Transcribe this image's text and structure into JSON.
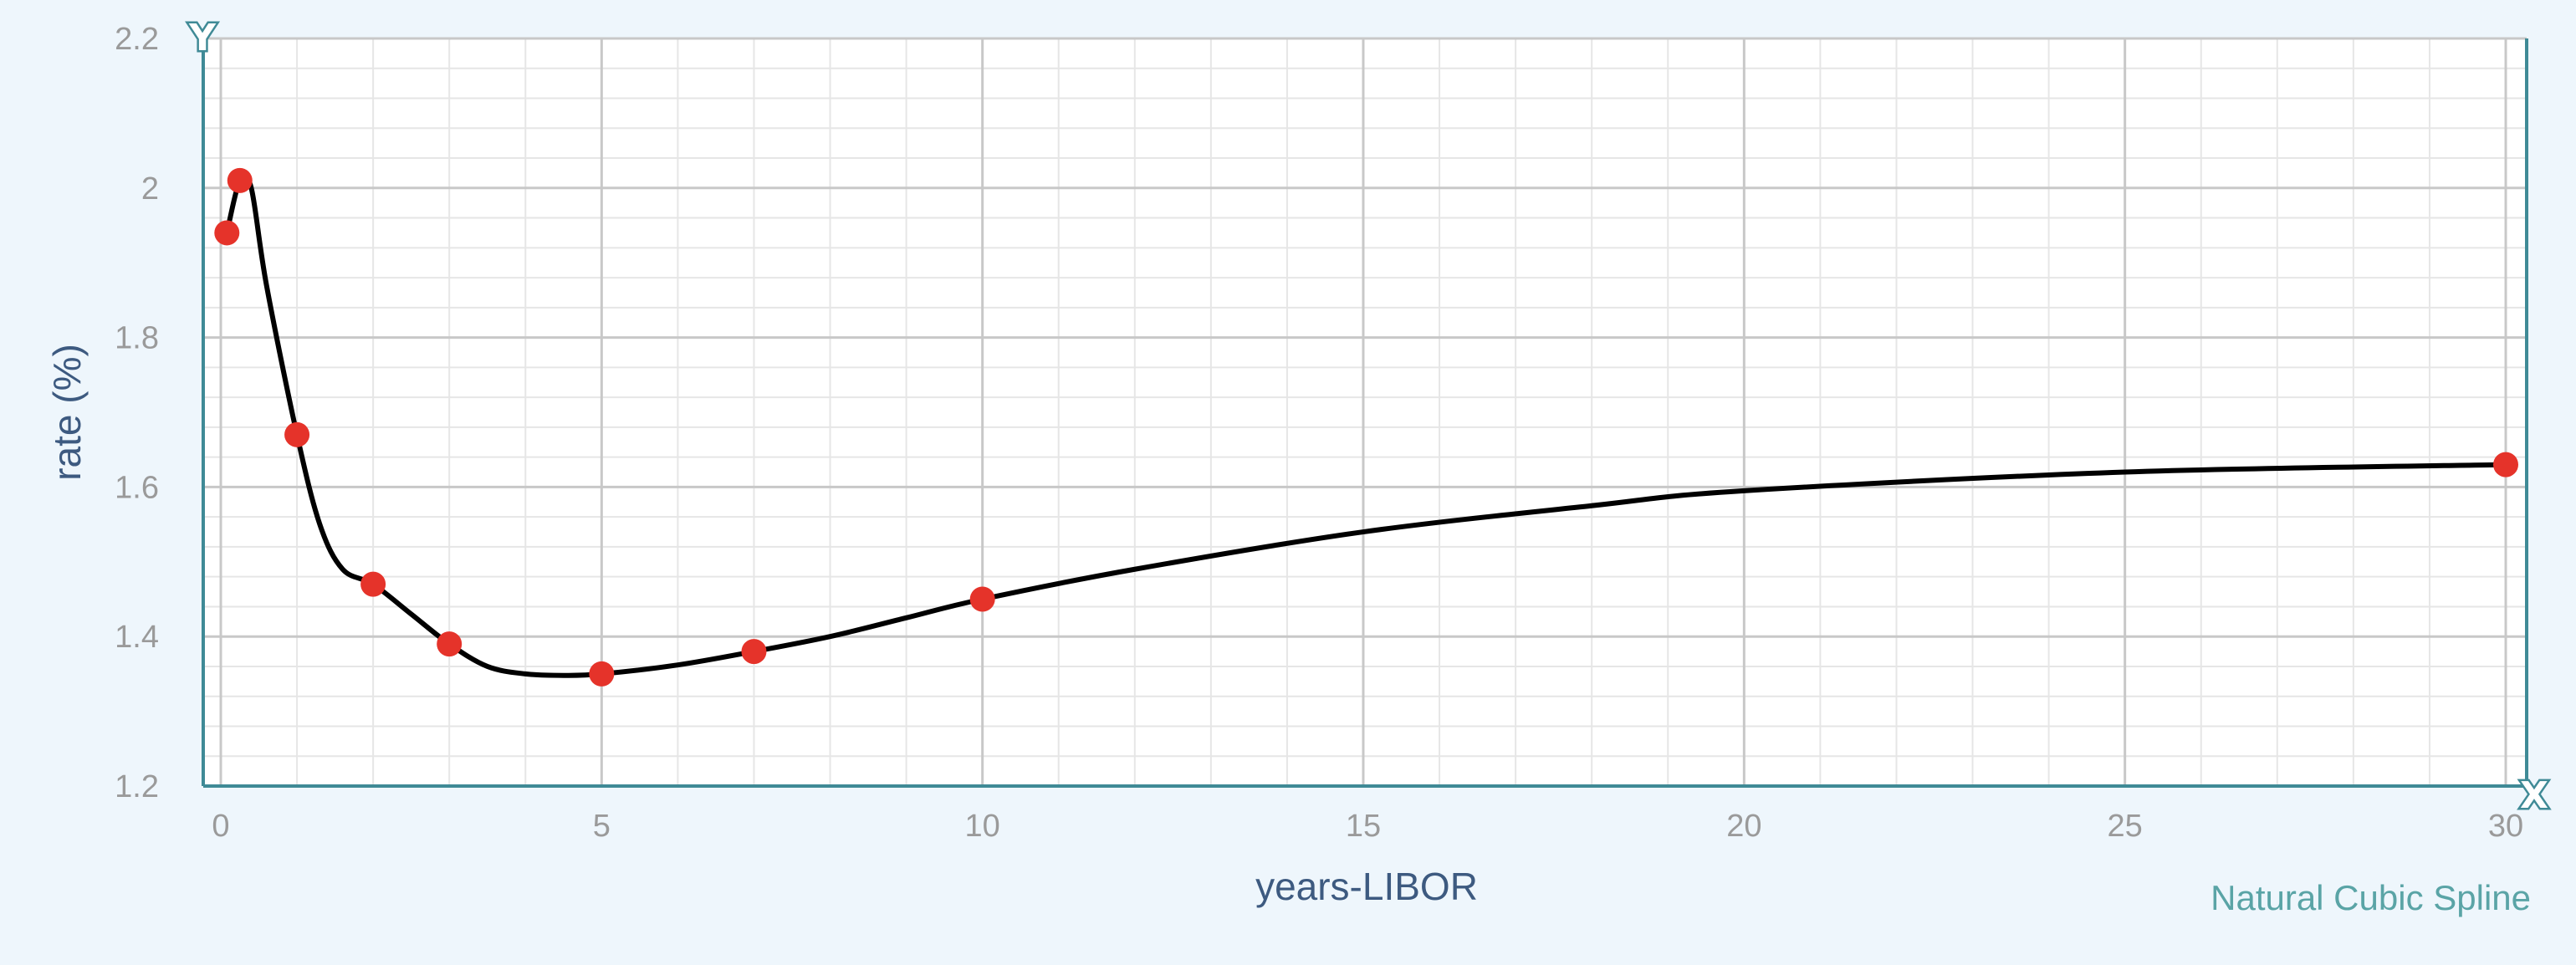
{
  "chart_data": {
    "type": "line",
    "xlabel": "years-LIBOR",
    "ylabel": "rate (%)",
    "annotation": "Natural Cubic Spline",
    "x_axis_marker": "X",
    "y_axis_marker": "Y",
    "xlim": [
      0,
      30
    ],
    "ylim": [
      1.2,
      2.2
    ],
    "x_ticks": [
      0,
      5,
      10,
      15,
      20,
      25,
      30
    ],
    "y_ticks": [
      1.2,
      1.4,
      1.6,
      1.8,
      2,
      2.2
    ],
    "x_tick_labels": [
      "0",
      "5",
      "10",
      "15",
      "20",
      "25",
      "30"
    ],
    "y_tick_labels": [
      "1.2",
      "1.4",
      "1.6",
      "1.8",
      "2",
      "2.2"
    ],
    "grid": true,
    "points": {
      "x": [
        0.08,
        0.25,
        1,
        2,
        3,
        5,
        7,
        10,
        30
      ],
      "y": [
        1.94,
        2.01,
        1.67,
        1.47,
        1.39,
        1.35,
        1.38,
        1.45,
        1.63
      ]
    },
    "curve": {
      "x": [
        0.08,
        0.25,
        0.4,
        0.6,
        1,
        1.3,
        1.6,
        2,
        2.5,
        3,
        3.5,
        4,
        4.5,
        5,
        6,
        7,
        8,
        9,
        10,
        12,
        15,
        18,
        20,
        25,
        30
      ],
      "y": [
        1.94,
        2.01,
        2.0,
        1.87,
        1.67,
        1.55,
        1.49,
        1.47,
        1.43,
        1.39,
        1.36,
        1.35,
        1.348,
        1.35,
        1.362,
        1.38,
        1.4,
        1.425,
        1.45,
        1.49,
        1.54,
        1.575,
        1.595,
        1.62,
        1.63
      ]
    },
    "colors": {
      "curve": "#000000",
      "points": "#e5332a",
      "frame": "#3f8a96",
      "major_grid": "#c8c8c8",
      "minor_grid": "#e6e6e6",
      "plot_bg": "#ffffff"
    }
  }
}
